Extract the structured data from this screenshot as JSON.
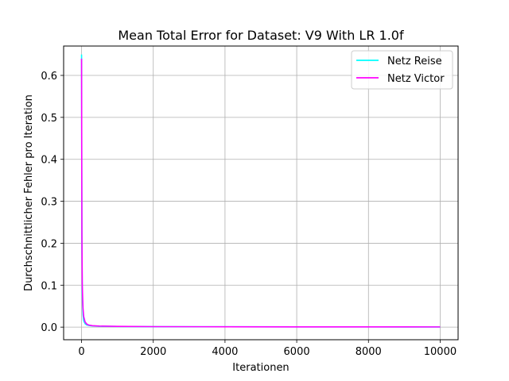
{
  "chart_data": {
    "type": "line",
    "title": "Mean Total Error for Dataset: V9 With LR 1.0f",
    "xlabel": "Iterationen",
    "ylabel": "Durchschnittlicher Fehler pro Iteration",
    "xlim": [
      -500,
      10500
    ],
    "ylim": [
      -0.03,
      0.67
    ],
    "xticks": [
      0,
      2000,
      4000,
      6000,
      8000,
      10000
    ],
    "xtick_labels": [
      "0",
      "2000",
      "4000",
      "6000",
      "8000",
      "10000"
    ],
    "yticks": [
      0.0,
      0.1,
      0.2,
      0.3,
      0.4,
      0.5,
      0.6
    ],
    "ytick_labels": [
      "0.0",
      "0.1",
      "0.2",
      "0.3",
      "0.4",
      "0.5",
      "0.6"
    ],
    "grid": true,
    "legend_position": "top-right",
    "series": [
      {
        "name": "Netz Reise",
        "color": "#00ffff",
        "x": [
          0,
          5,
          10,
          20,
          40,
          60,
          100,
          150,
          200,
          300,
          500,
          1000,
          2000,
          4000,
          6000,
          8000,
          10000
        ],
        "y": [
          0.65,
          0.42,
          0.2,
          0.08,
          0.03,
          0.015,
          0.008,
          0.005,
          0.004,
          0.003,
          0.002,
          0.0015,
          0.001,
          0.0008,
          0.0006,
          0.0005,
          0.0004
        ]
      },
      {
        "name": "Netz Victor",
        "color": "#ff00ff",
        "x": [
          0,
          5,
          10,
          20,
          40,
          60,
          100,
          150,
          200,
          300,
          500,
          1000,
          2000,
          4000,
          6000,
          8000,
          10000
        ],
        "y": [
          0.64,
          0.4,
          0.22,
          0.1,
          0.045,
          0.025,
          0.012,
          0.007,
          0.005,
          0.0035,
          0.0025,
          0.0018,
          0.0012,
          0.0009,
          0.0007,
          0.0006,
          0.0005
        ]
      }
    ]
  }
}
